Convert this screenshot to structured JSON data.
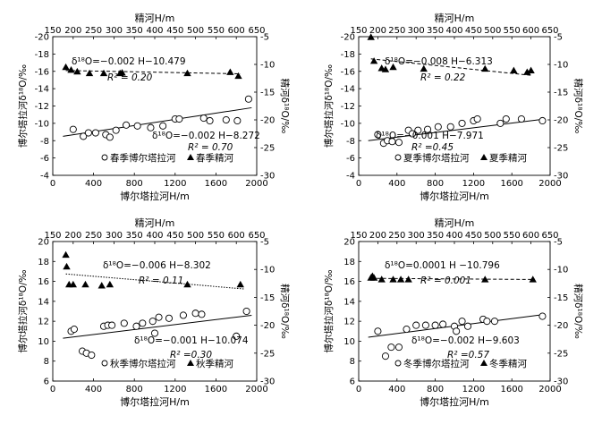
{
  "figure_title": "",
  "chart_data": [
    {
      "type": "scatter",
      "panel": "spring",
      "top_axis_label": "精河H/m",
      "bottom_axis_label": "博尔塔拉河H/m",
      "left_axis_label": "博尔塔拉河δ¹⁸O/‰",
      "right_axis_label": "精河δ¹⁸O/‰",
      "xlim_bottom": [
        0,
        2000
      ],
      "xticks_bottom": [
        0,
        400,
        800,
        1200,
        1600,
        2000
      ],
      "xlim_top": [
        150,
        650
      ],
      "xticks_top": [
        150,
        200,
        250,
        300,
        350,
        400,
        450,
        500,
        550,
        600,
        650
      ],
      "ylim_left": [
        -4,
        -20
      ],
      "yticks_left": [
        -4,
        -6,
        -8,
        -10,
        -12,
        -14,
        -16,
        -18,
        -20
      ],
      "ylim_right": [
        -30,
        -5
      ],
      "yticks_right": [
        -30,
        -25,
        -20,
        -15,
        -10,
        -5
      ],
      "series": [
        {
          "name": "春季博尔塔拉河",
          "marker": "open-circle",
          "axis": "left-bottom",
          "points": [
            [
              200,
              -9.3
            ],
            [
              300,
              -8.5
            ],
            [
              350,
              -8.9
            ],
            [
              420,
              -8.9
            ],
            [
              520,
              -8.7
            ],
            [
              560,
              -8.4
            ],
            [
              620,
              -9.2
            ],
            [
              720,
              -9.8
            ],
            [
              830,
              -9.7
            ],
            [
              960,
              -9.5
            ],
            [
              1080,
              -9.7
            ],
            [
              1200,
              -10.5
            ],
            [
              1240,
              -10.5
            ],
            [
              1480,
              -10.6
            ],
            [
              1540,
              -10.3
            ],
            [
              1700,
              -10.4
            ],
            [
              1810,
              -10.3
            ],
            [
              1920,
              -12.8
            ]
          ]
        },
        {
          "name": "春季精河",
          "marker": "filled-triangle",
          "axis": "right-top",
          "points": [
            [
              182,
              -10.5
            ],
            [
              195,
              -11.0
            ],
            [
              210,
              -11.3
            ],
            [
              240,
              -11.6
            ],
            [
              275,
              -11.6
            ],
            [
              315,
              -11.6
            ],
            [
              320,
              -11.5
            ],
            [
              480,
              -11.6
            ],
            [
              585,
              -11.4
            ],
            [
              605,
              -12.1
            ]
          ]
        }
      ],
      "annotations": [
        {
          "text": "δ¹⁸O=−0.002 H−10.479",
          "r2": "R² = 0.20"
        },
        {
          "text": "δ¹⁸O=−0.002 H−8.272",
          "r2": "R² = 0.70"
        }
      ],
      "fit_lines": [
        {
          "style": "dashed",
          "axis": "right-top",
          "x": [
            182,
            610
          ],
          "y": [
            -11.1,
            -11.7
          ]
        },
        {
          "style": "solid",
          "axis": "left-bottom",
          "x": [
            100,
            1950
          ],
          "y": [
            -8.5,
            -11.8
          ]
        }
      ]
    },
    {
      "type": "scatter",
      "panel": "summer",
      "top_axis_label": "精河H/m",
      "bottom_axis_label": "博尔塔拉河H/m",
      "left_axis_label": "博尔塔拉河δ¹⁸O/‰",
      "right_axis_label": "精河δ¹⁸O/‰",
      "xlim_bottom": [
        0,
        2000
      ],
      "xticks_bottom": [
        0,
        400,
        800,
        1200,
        1600,
        2000
      ],
      "xlim_top": [
        150,
        650
      ],
      "xticks_top": [
        150,
        200,
        250,
        300,
        350,
        400,
        450,
        500,
        550,
        600,
        650
      ],
      "ylim_left": [
        -4,
        -20
      ],
      "yticks_left": [
        -4,
        -6,
        -8,
        -10,
        -12,
        -14,
        -16,
        -18,
        -20
      ],
      "ylim_right": [
        -30,
        -5
      ],
      "yticks_right": [
        -30,
        -25,
        -20,
        -15,
        -10,
        -5
      ],
      "series": [
        {
          "name": "夏季博尔塔拉河",
          "marker": "open-circle",
          "axis": "left-bottom",
          "points": [
            [
              200,
              -8.7
            ],
            [
              260,
              -7.7
            ],
            [
              300,
              -8.0
            ],
            [
              350,
              -7.9
            ],
            [
              420,
              -7.8
            ],
            [
              520,
              -9.2
            ],
            [
              560,
              -8.8
            ],
            [
              620,
              -9.2
            ],
            [
              720,
              -9.3
            ],
            [
              830,
              -9.6
            ],
            [
              960,
              -9.6
            ],
            [
              1080,
              -10.0
            ],
            [
              1200,
              -10.3
            ],
            [
              1240,
              -10.5
            ],
            [
              1480,
              -10.0
            ],
            [
              1540,
              -10.5
            ],
            [
              1700,
              -10.5
            ],
            [
              1920,
              -10.3
            ]
          ]
        },
        {
          "name": "夏季精河",
          "marker": "filled-triangle",
          "axis": "right-top",
          "points": [
            [
              182,
              -5.1
            ],
            [
              190,
              -9.4
            ],
            [
              210,
              -10.7
            ],
            [
              220,
              -10.9
            ],
            [
              240,
              -10.5
            ],
            [
              320,
              -10.8
            ],
            [
              480,
              -10.8
            ],
            [
              555,
              -11.1
            ],
            [
              590,
              -11.4
            ],
            [
              600,
              -11.1
            ]
          ]
        }
      ],
      "annotations": [
        {
          "text": "δ¹⁸O=−0.008 H−6.313",
          "r2": "R² = 0.22"
        },
        {
          "text": "δ¹⁸O=−0.001 H−7.971",
          "r2": "R² =0.45"
        }
      ],
      "fit_lines": [
        {
          "style": "dashed",
          "axis": "right-top",
          "x": [
            182,
            605
          ],
          "y": [
            -9.0,
            -12.0
          ]
        },
        {
          "style": "solid",
          "axis": "left-bottom",
          "x": [
            100,
            1950
          ],
          "y": [
            -8.0,
            -10.5
          ]
        }
      ]
    },
    {
      "type": "scatter",
      "panel": "autumn",
      "top_axis_label": "精河H/m",
      "bottom_axis_label": "博尔塔拉河H/m",
      "left_axis_label": "博尔塔拉河δ¹⁸O/‰",
      "right_axis_label": "精河δ¹⁸O/‰",
      "xlim_bottom": [
        0,
        2000
      ],
      "xticks_bottom": [
        0,
        400,
        800,
        1200,
        1600,
        2000
      ],
      "xlim_top": [
        150,
        650
      ],
      "xticks_top": [
        150,
        200,
        250,
        300,
        350,
        400,
        450,
        500,
        550,
        600,
        650
      ],
      "ylim_left": [
        6,
        20
      ],
      "yticks_left": [
        6,
        8,
        10,
        12,
        14,
        16,
        18,
        20
      ],
      "ylim_right": [
        -30,
        -5
      ],
      "yticks_right": [
        -30,
        -25,
        -20,
        -15,
        -10,
        -5
      ],
      "series": [
        {
          "name": "秋季博尔塔拉河",
          "marker": "open-circle",
          "axis": "left-bottom",
          "points": [
            [
              180,
              11.0
            ],
            [
              210,
              11.2
            ],
            [
              290,
              9.0
            ],
            [
              330,
              8.8
            ],
            [
              380,
              8.6
            ],
            [
              500,
              11.5
            ],
            [
              540,
              11.6
            ],
            [
              580,
              11.6
            ],
            [
              700,
              11.8
            ],
            [
              820,
              11.5
            ],
            [
              880,
              11.8
            ],
            [
              980,
              12.0
            ],
            [
              1000,
              10.8
            ],
            [
              1040,
              12.4
            ],
            [
              1140,
              12.3
            ],
            [
              1280,
              12.6
            ],
            [
              1400,
              12.8
            ],
            [
              1460,
              12.7
            ],
            [
              1800,
              10.5
            ],
            [
              1900,
              13.0
            ]
          ]
        },
        {
          "name": "秋季精河",
          "marker": "filled-triangle",
          "axis": "right-top",
          "points": [
            [
              182,
              -7.4
            ],
            [
              184,
              -9.5
            ],
            [
              190,
              -12.7
            ],
            [
              200,
              -12.7
            ],
            [
              230,
              -12.7
            ],
            [
              270,
              -12.9
            ],
            [
              290,
              -12.7
            ],
            [
              480,
              -12.7
            ],
            [
              610,
              -12.7
            ]
          ]
        }
      ],
      "annotations": [
        {
          "text": "δ¹⁸O=−0.006 H−8.302",
          "r2": "R² = 0.11"
        },
        {
          "text": "δ¹⁸O=−0.001 H−10.074",
          "r2": "R² =0.30"
        }
      ],
      "fit_lines": [
        {
          "style": "dotted",
          "axis": "right-top",
          "x": [
            182,
            620
          ],
          "y": [
            -10.8,
            -13.5
          ]
        },
        {
          "style": "solid",
          "axis": "left-bottom",
          "x": [
            100,
            1950
          ],
          "y": [
            10.3,
            12.6
          ]
        }
      ]
    },
    {
      "type": "scatter",
      "panel": "winter",
      "top_axis_label": "精河H/m",
      "bottom_axis_label": "博尔塔拉河H/m",
      "left_axis_label": "博尔塔拉河δ¹⁸O/‰",
      "right_axis_label": "精河δ¹⁸O/‰",
      "xlim_bottom": [
        0,
        2000
      ],
      "xticks_bottom": [
        0,
        400,
        800,
        1200,
        1600,
        2000
      ],
      "xlim_top": [
        150,
        650
      ],
      "xticks_top": [
        150,
        200,
        250,
        300,
        350,
        400,
        450,
        500,
        550,
        600,
        650
      ],
      "ylim_left": [
        6,
        20
      ],
      "yticks_left": [
        6,
        8,
        10,
        12,
        14,
        16,
        18,
        20
      ],
      "ylim_right": [
        -30,
        -5
      ],
      "yticks_right": [
        -30,
        -25,
        -20,
        -15,
        -10,
        -5
      ],
      "series": [
        {
          "name": "冬季博尔塔拉河",
          "marker": "open-circle",
          "axis": "left-bottom",
          "points": [
            [
              200,
              11.0
            ],
            [
              280,
              8.5
            ],
            [
              340,
              9.4
            ],
            [
              420,
              9.4
            ],
            [
              500,
              11.2
            ],
            [
              600,
              11.6
            ],
            [
              700,
              11.6
            ],
            [
              800,
              11.6
            ],
            [
              880,
              11.7
            ],
            [
              1000,
              11.5
            ],
            [
              1020,
              11.0
            ],
            [
              1080,
              12.0
            ],
            [
              1140,
              11.5
            ],
            [
              1300,
              12.2
            ],
            [
              1340,
              12.0
            ],
            [
              1420,
              12.0
            ],
            [
              1920,
              12.5
            ]
          ]
        },
        {
          "name": "冬季精河",
          "marker": "filled-triangle",
          "axis": "right-top",
          "points": [
            [
              182,
              -11.5
            ],
            [
              184,
              -11.4
            ],
            [
              186,
              -11.2
            ],
            [
              190,
              -11.5
            ],
            [
              210,
              -11.8
            ],
            [
              240,
              -11.8
            ],
            [
              260,
              -11.8
            ],
            [
              280,
              -11.8
            ],
            [
              480,
              -11.8
            ],
            [
              605,
              -11.8
            ]
          ]
        }
      ],
      "annotations": [
        {
          "text": "δ¹⁸O=0.0001 H −10.796",
          "r2": "R² = 0.001"
        },
        {
          "text": "δ¹⁸O=−0.002 H−9.603",
          "r2": "R² =0.57"
        }
      ],
      "fit_lines": [
        {
          "style": "dashed",
          "axis": "right-top",
          "x": [
            182,
            610
          ],
          "y": [
            -11.6,
            -11.8
          ]
        },
        {
          "style": "solid",
          "axis": "left-bottom",
          "x": [
            100,
            1950
          ],
          "y": [
            10.4,
            12.7
          ]
        }
      ]
    }
  ]
}
